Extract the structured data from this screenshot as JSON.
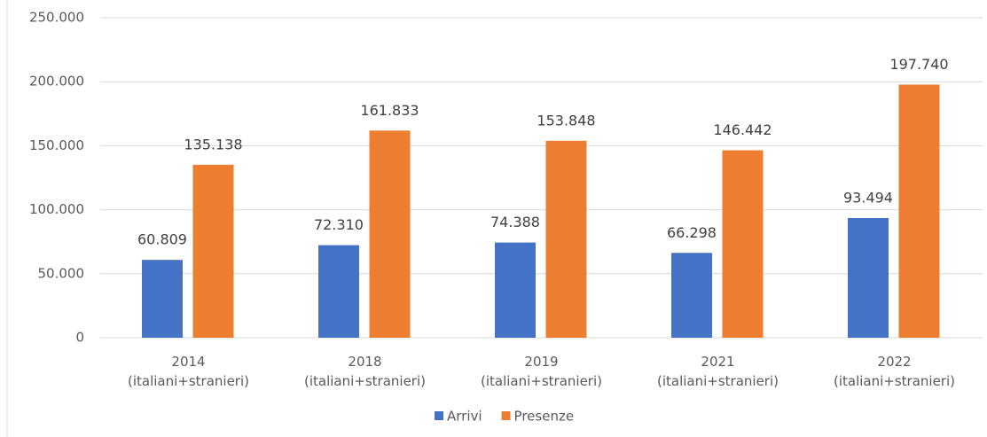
{
  "chart_data": {
    "type": "bar",
    "categories": [
      "2014 (italiani+stranieri)",
      "2018 (italiani+stranieri)",
      "2019 (italiani+stranieri)",
      "2021 (italiani+stranieri)",
      "2022 (italiani+stranieri)"
    ],
    "series": [
      {
        "name": "Arrivi",
        "color": "#4472c4",
        "values": [
          60809,
          72310,
          74388,
          66298,
          93494
        ],
        "value_labels": [
          "60.809",
          "72.310",
          "74.388",
          "66.298",
          "93.494"
        ]
      },
      {
        "name": "Presenze",
        "color": "#ed7d31",
        "values": [
          135138,
          161833,
          153848,
          146442,
          197740
        ],
        "value_labels": [
          "135.138",
          "161.833",
          "153.848",
          "146.442",
          "197.740"
        ]
      }
    ],
    "ylim": [
      0,
      250000
    ],
    "yticks": [
      0,
      {
        "value": 50000,
        "label": "50.000"
      },
      {
        "value": 100000,
        "label": "100.000"
      },
      {
        "value": 150000,
        "label": "150.000"
      },
      {
        "value": 200000,
        "label": "200.000"
      },
      {
        "value": 250000,
        "label": "250.000"
      }
    ],
    "grid": true,
    "legend": "bottom"
  }
}
